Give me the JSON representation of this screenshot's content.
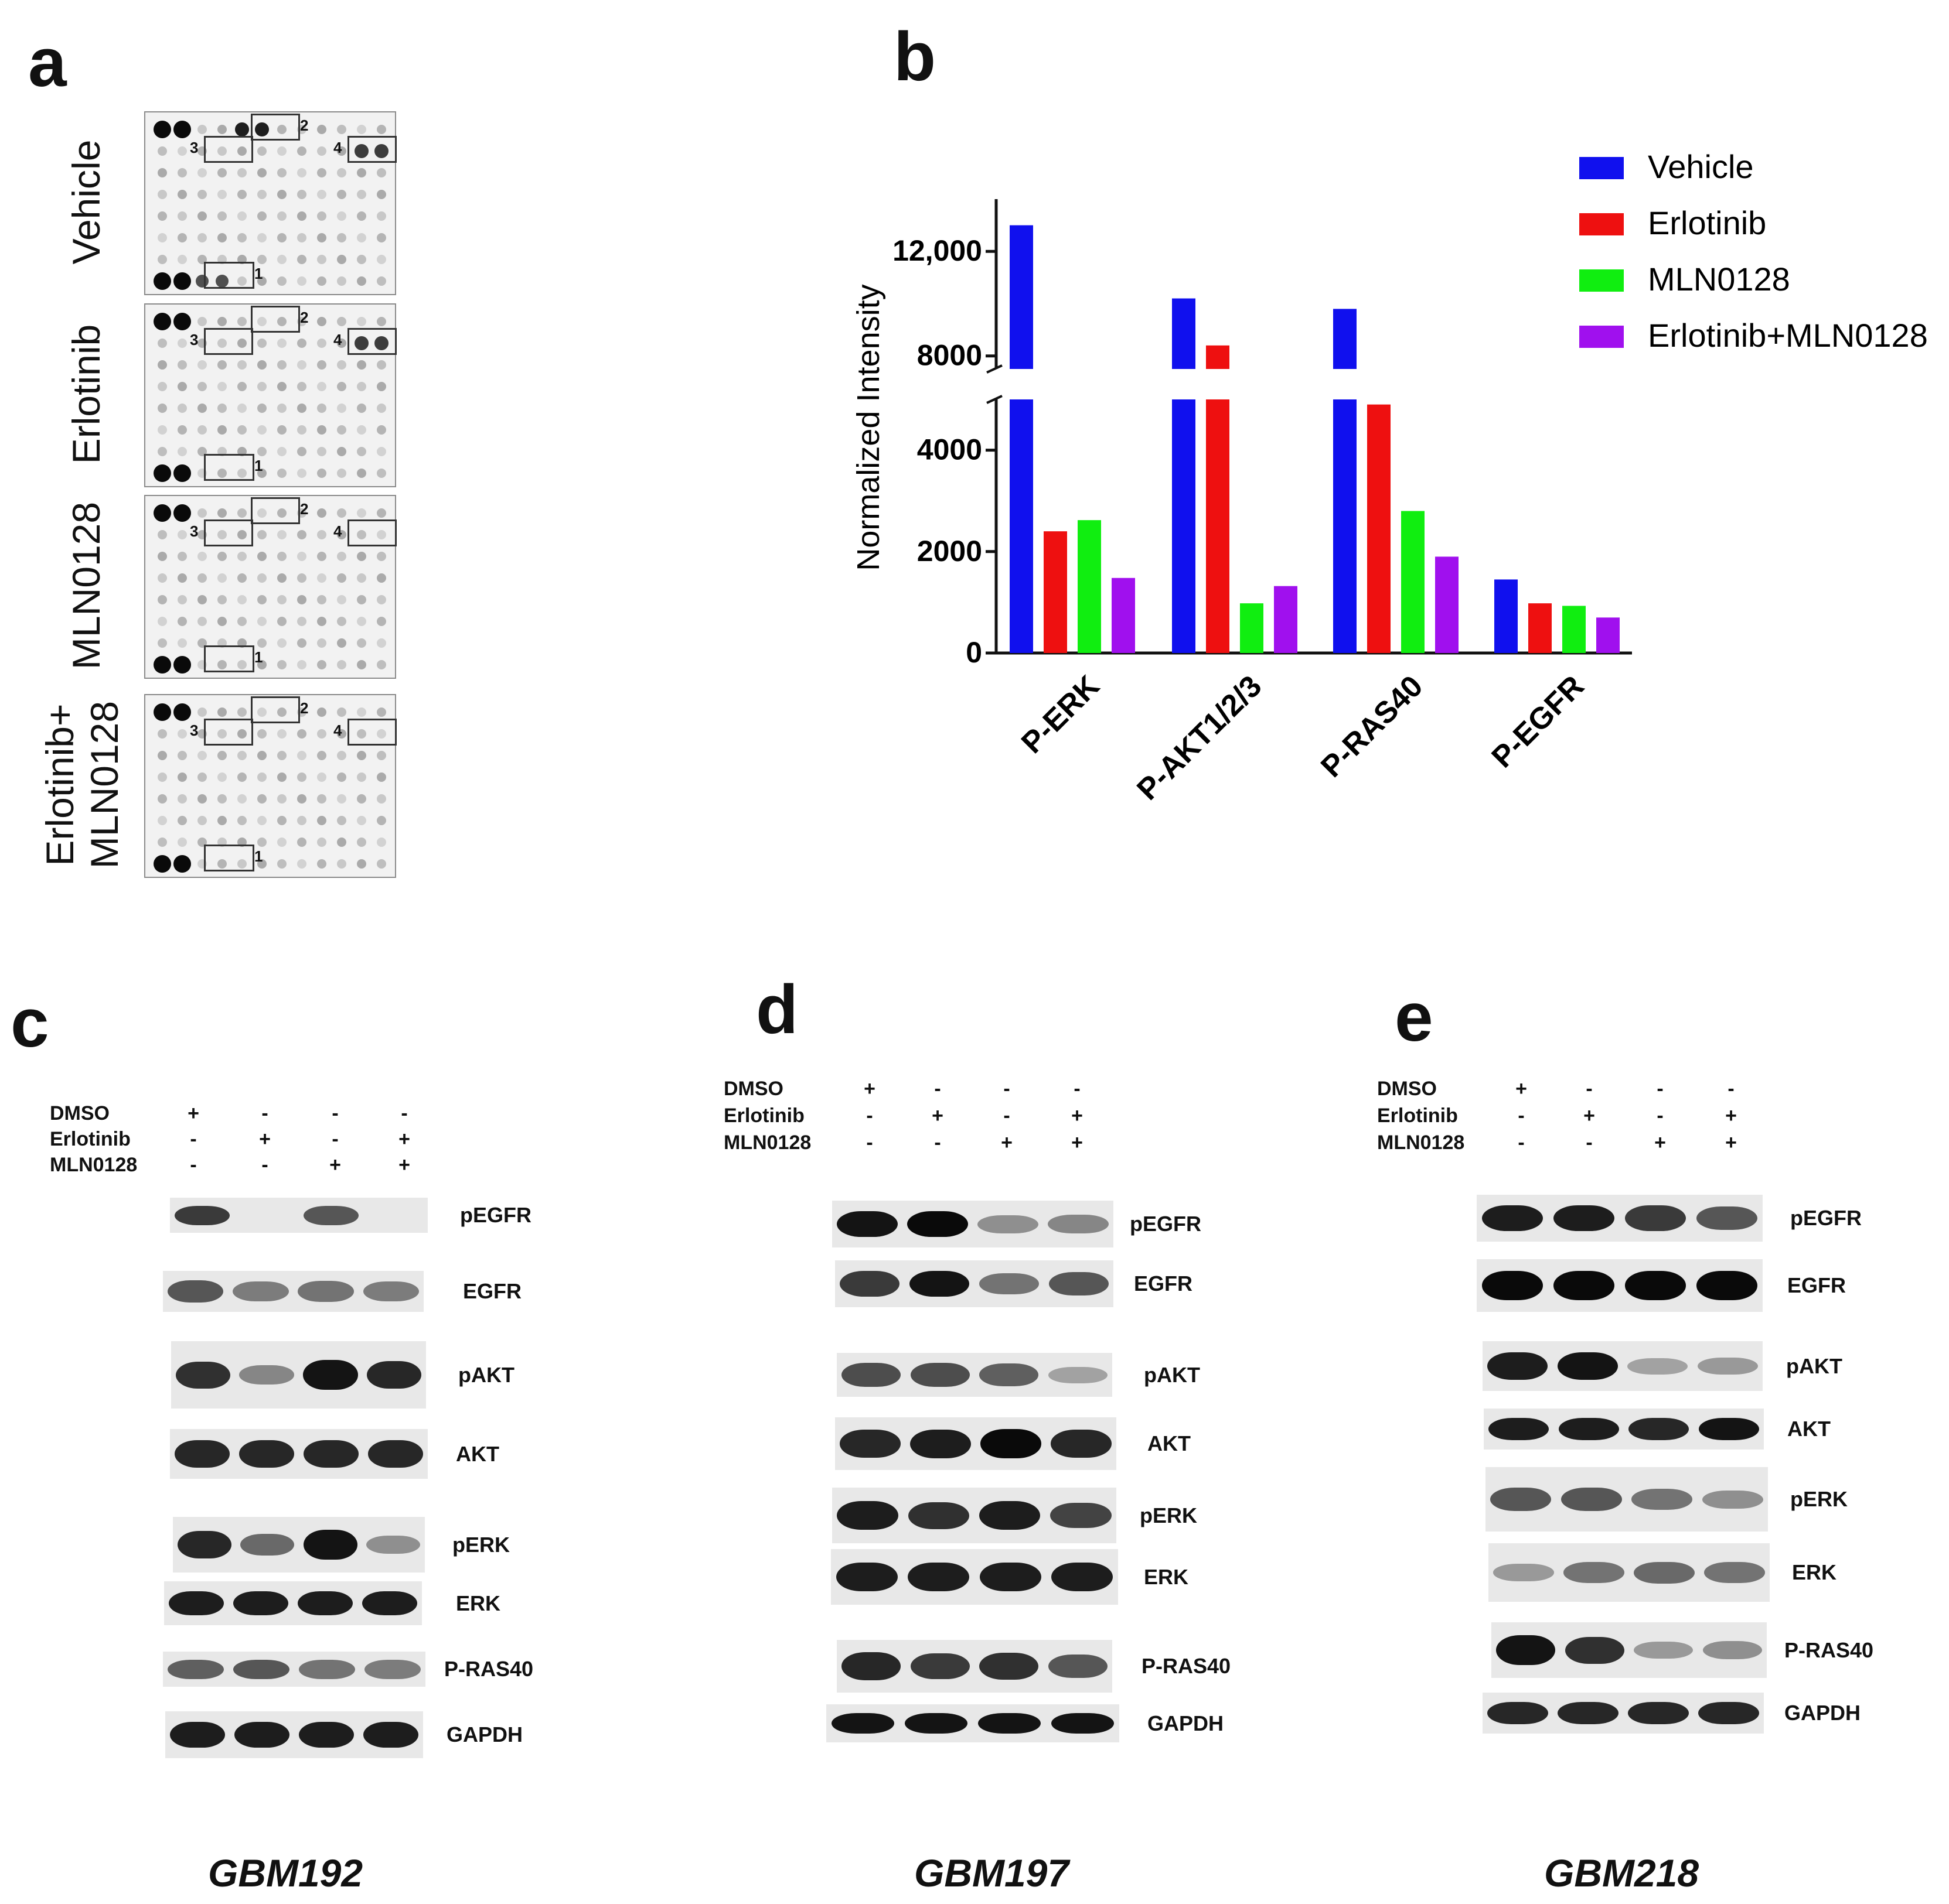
{
  "panels": {
    "a": "a",
    "b": "b",
    "c": "c",
    "d": "d",
    "e": "e"
  },
  "panel_a": {
    "treatments": [
      {
        "label": "Vehicle"
      },
      {
        "label": "Erlotinib"
      },
      {
        "label": "MLN0128"
      },
      {
        "label": "Erlotinib+ MLN0128"
      }
    ],
    "box_numbers": [
      "1",
      "2",
      "3",
      "4"
    ]
  },
  "chart_data": {
    "type": "bar",
    "categories": [
      "P-ERK",
      "P-AKT1/2/3",
      "P-RAS40",
      "P-EGFR"
    ],
    "series": [
      {
        "name": "Vehicle",
        "color": "#1010ee",
        "values": [
          13000,
          10200,
          9800,
          1450
        ]
      },
      {
        "name": "Erlotinib",
        "color": "#ee1010",
        "values": [
          2400,
          8400,
          4900,
          980
        ]
      },
      {
        "name": "MLN0128",
        "color": "#10ee10",
        "values": [
          2620,
          980,
          2800,
          930
        ]
      },
      {
        "name": "Erlotinib+MLN0128",
        "color": "#a010ee",
        "values": [
          1480,
          1320,
          1900,
          700
        ]
      }
    ],
    "ylabel": "Normalized Intensity",
    "xlabel": "",
    "title": "",
    "y_break": {
      "lower": [
        0,
        5000
      ],
      "upper": [
        7500,
        14000
      ]
    },
    "yticks_lower": [
      "0",
      "2000",
      "4000"
    ],
    "yticks_upper": [
      "8000",
      "12,000"
    ],
    "legend_position": "top-right"
  },
  "blots": {
    "conditions": [
      "DMSO",
      "Erlotinib",
      "MLN0128"
    ],
    "signs": [
      [
        "+",
        "-",
        "-",
        "-"
      ],
      [
        "-",
        "+",
        "-",
        "+"
      ],
      [
        "-",
        "-",
        "+",
        "+"
      ]
    ],
    "c": {
      "cell_line": "GBM192",
      "labels": [
        "pEGFR",
        "EGFR",
        "pAKT",
        "AKT",
        "pERK",
        "ERK",
        "P-RAS40",
        "GAPDH"
      ],
      "intensity": [
        [
          0.75,
          0.0,
          0.6,
          0.0
        ],
        [
          0.6,
          0.4,
          0.45,
          0.4
        ],
        [
          0.8,
          0.35,
          0.95,
          0.85
        ],
        [
          0.85,
          0.85,
          0.85,
          0.85
        ],
        [
          0.85,
          0.5,
          0.95,
          0.3
        ],
        [
          0.9,
          0.9,
          0.9,
          0.9
        ],
        [
          0.55,
          0.6,
          0.45,
          0.4
        ],
        [
          0.9,
          0.9,
          0.9,
          0.9
        ]
      ]
    },
    "d": {
      "cell_line": "GBM197",
      "labels": [
        "pEGFR",
        "EGFR",
        "pAKT",
        "AKT",
        "pERK",
        "ERK",
        "P-RAS40",
        "GAPDH"
      ],
      "intensity": [
        [
          0.95,
          1.0,
          0.3,
          0.35
        ],
        [
          0.75,
          0.95,
          0.45,
          0.6
        ],
        [
          0.65,
          0.65,
          0.55,
          0.2
        ],
        [
          0.85,
          0.9,
          1.0,
          0.85
        ],
        [
          0.9,
          0.8,
          0.9,
          0.7
        ],
        [
          0.9,
          0.9,
          0.9,
          0.9
        ],
        [
          0.85,
          0.75,
          0.8,
          0.6
        ],
        [
          0.95,
          0.95,
          0.95,
          0.95
        ]
      ]
    },
    "e": {
      "cell_line": "GBM218",
      "labels": [
        "pEGFR",
        "EGFR",
        "pAKT",
        "AKT",
        "pERK",
        "ERK",
        "P-RAS40",
        "GAPDH"
      ],
      "intensity": [
        [
          0.9,
          0.9,
          0.75,
          0.6
        ],
        [
          1.0,
          1.0,
          1.0,
          1.0
        ],
        [
          0.9,
          0.95,
          0.2,
          0.25
        ],
        [
          0.9,
          0.9,
          0.85,
          0.95
        ],
        [
          0.6,
          0.6,
          0.45,
          0.3
        ],
        [
          0.25,
          0.45,
          0.5,
          0.45
        ],
        [
          0.95,
          0.8,
          0.25,
          0.3
        ],
        [
          0.85,
          0.85,
          0.85,
          0.85
        ]
      ]
    }
  }
}
